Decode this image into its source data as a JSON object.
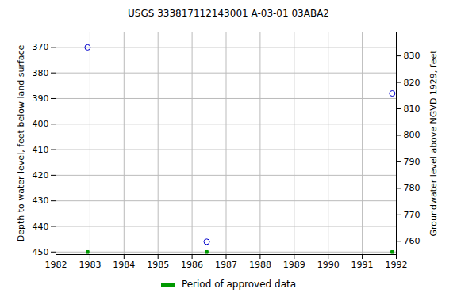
{
  "chart_data": {
    "type": "scatter",
    "title": "USGS 333817112143001 A-03-01 03ABA2",
    "x": [
      1982.93,
      1986.43,
      1991.88
    ],
    "series": [
      {
        "color": "#0000cc",
        "marker": "circle-open",
        "values": [
          370,
          446,
          388
        ]
      },
      {
        "name": "Period of approved data",
        "color": "#009900",
        "marker": "square",
        "values": [
          450,
          450,
          450
        ]
      }
    ],
    "xlim": [
      1982,
      1992
    ],
    "xticks": [
      1982,
      1983,
      1984,
      1985,
      1986,
      1987,
      1988,
      1989,
      1990,
      1991,
      1992
    ],
    "ylim": [
      451,
      364
    ],
    "yticks": [
      370,
      380,
      390,
      400,
      410,
      420,
      430,
      440,
      450
    ],
    "y2lim": [
      755,
      839
    ],
    "y2ticks": [
      760,
      770,
      780,
      790,
      800,
      810,
      820,
      830
    ],
    "ylabel": "Depth to water level, feet below land surface",
    "y2label": "Groundwater level above NGVD 1929, feet",
    "grid": true,
    "legend": "bottom"
  }
}
